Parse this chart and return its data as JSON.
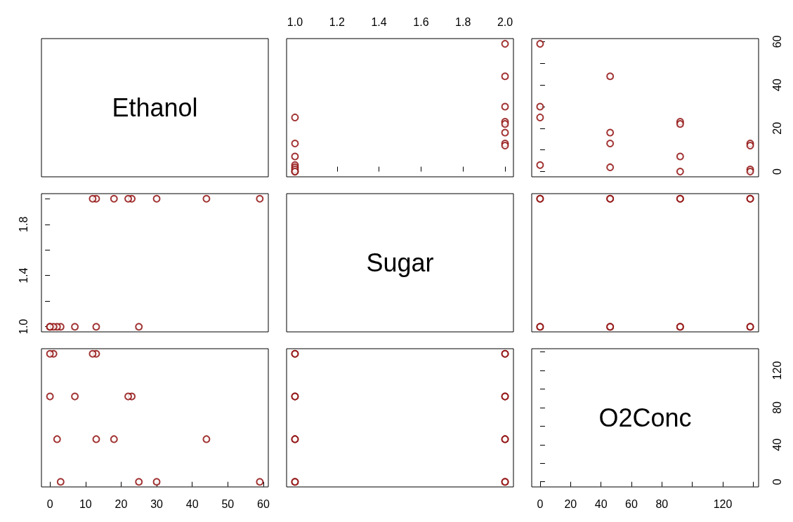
{
  "chart_data": [
    {
      "type": "other",
      "title": "Ethanol"
    },
    {
      "type": "scatter",
      "xlim": [
        0.96,
        2.04
      ],
      "xticks": [
        {
          "value": 1,
          "label": "1.0"
        },
        1.2,
        1.4,
        1.6,
        1.8,
        {
          "value": 2,
          "label": "2.0"
        }
      ],
      "ylim": [
        -2.4,
        61.4
      ],
      "tick_labels": "x",
      "marker": "circle",
      "series": [
        {
          "color": "#8b0000",
          "x": [
            2,
            2,
            1,
            1,
            2,
            2,
            1,
            1,
            2,
            2,
            1,
            1,
            2,
            2,
            1,
            1
          ],
          "values": [
            59,
            30,
            25,
            3,
            44,
            18,
            13,
            2,
            23,
            22,
            7,
            0,
            13,
            12,
            1,
            0
          ]
        }
      ]
    },
    {
      "type": "scatter",
      "xlim": [
        -5.5,
        143.5
      ],
      "ylim": [
        -2.4,
        61.4
      ],
      "yticks": [
        0,
        {
          "value": 10,
          "label": null
        },
        20,
        {
          "value": 30,
          "label": null
        },
        40,
        {
          "value": 50,
          "label": null
        },
        60
      ],
      "tick_labels": "y",
      "marker": "circle",
      "series": [
        {
          "color": "#8b0000",
          "x": [
            0,
            0,
            0,
            0,
            46,
            46,
            46,
            46,
            92,
            92,
            92,
            92,
            138,
            138,
            138,
            138
          ],
          "values": [
            59,
            30,
            25,
            3,
            44,
            18,
            13,
            2,
            23,
            22,
            7,
            0,
            13,
            12,
            1,
            0
          ]
        }
      ]
    },
    {
      "type": "scatter",
      "xlim": [
        -2.4,
        61.4
      ],
      "ylim": [
        0.96,
        2.04
      ],
      "yticks": [
        {
          "value": 1,
          "label": "1.0"
        },
        {
          "value": 1.2,
          "label": null
        },
        1.4,
        {
          "value": 1.6,
          "label": null
        },
        1.8,
        {
          "value": 2,
          "label": null
        }
      ],
      "tick_labels": "y",
      "marker": "circle",
      "series": [
        {
          "color": "#8b0000",
          "x": [
            59,
            30,
            25,
            3,
            44,
            18,
            13,
            2,
            23,
            22,
            7,
            0,
            13,
            12,
            1,
            0
          ],
          "values": [
            2,
            2,
            1,
            1,
            2,
            2,
            1,
            1,
            2,
            2,
            1,
            1,
            2,
            2,
            1,
            1
          ]
        }
      ]
    },
    {
      "type": "other",
      "title": "Sugar"
    },
    {
      "type": "scatter",
      "xlim": [
        -5.5,
        143.5
      ],
      "ylim": [
        0.96,
        2.04
      ],
      "tick_labels": false,
      "marker": "circle",
      "series": [
        {
          "color": "#8b0000",
          "x": [
            0,
            0,
            0,
            0,
            46,
            46,
            46,
            46,
            92,
            92,
            92,
            92,
            138,
            138,
            138,
            138
          ],
          "values": [
            2,
            2,
            1,
            1,
            2,
            2,
            1,
            1,
            2,
            2,
            1,
            1,
            2,
            2,
            1,
            1
          ]
        }
      ]
    },
    {
      "type": "scatter",
      "xlim": [
        -2.4,
        61.4
      ],
      "xticks": [
        0,
        10,
        20,
        30,
        40,
        50,
        60
      ],
      "ylim": [
        -5.5,
        143.5
      ],
      "tick_labels": "x",
      "marker": "circle",
      "series": [
        {
          "color": "#8b0000",
          "x": [
            59,
            30,
            25,
            3,
            44,
            18,
            13,
            2,
            23,
            22,
            7,
            0,
            13,
            12,
            1,
            0
          ],
          "values": [
            0,
            0,
            0,
            0,
            46,
            46,
            46,
            46,
            92,
            92,
            92,
            92,
            138,
            138,
            138,
            138
          ]
        }
      ]
    },
    {
      "type": "scatter",
      "xlim": [
        0.96,
        2.04
      ],
      "ylim": [
        -5.5,
        143.5
      ],
      "tick_labels": false,
      "marker": "circle",
      "series": [
        {
          "color": "#8b0000",
          "x": [
            2,
            2,
            1,
            1,
            2,
            2,
            1,
            1,
            2,
            2,
            1,
            1,
            2,
            2,
            1,
            1
          ],
          "values": [
            0,
            0,
            0,
            0,
            46,
            46,
            46,
            46,
            92,
            92,
            92,
            92,
            138,
            138,
            138,
            138
          ]
        }
      ]
    },
    {
      "type": "scatter",
      "title": "O2Conc",
      "xlim": [
        -5.5,
        143.5
      ],
      "xticks": [
        0,
        20,
        40,
        60,
        80,
        {
          "value": 100,
          "label": null
        },
        120,
        {
          "value": 140,
          "label": null
        }
      ],
      "ylim": [
        -5.5,
        143.5
      ],
      "yticks": [
        0,
        {
          "value": 20,
          "label": null
        },
        40,
        {
          "value": 60,
          "label": null
        },
        80,
        {
          "value": 100,
          "label": null
        },
        120,
        {
          "value": 140,
          "label": null
        }
      ]
    }
  ]
}
